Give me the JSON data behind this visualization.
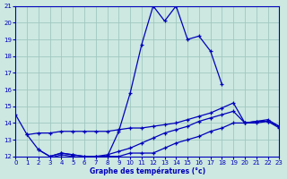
{
  "title": "Graphe des températures (°c)",
  "bg_color": "#cce8e0",
  "grid_color": "#a0c8c0",
  "line_color": "#0000bb",
  "xmin": 0,
  "xmax": 23,
  "ymin": 12,
  "ymax": 21,
  "series": [
    {
      "x": [
        0,
        1,
        2,
        3,
        4,
        5,
        6,
        7,
        8,
        9,
        10,
        11,
        12,
        13,
        14,
        15,
        16,
        17,
        18,
        19,
        20,
        21
      ],
      "y": [
        14.5,
        13.3,
        12.4,
        12.0,
        12.2,
        12.1,
        12.0,
        12.0,
        12.0,
        13.5,
        15.8,
        18.7,
        21.0,
        20.1,
        21.0,
        19.0,
        19.2,
        18.3,
        16.3,
        null,
        null,
        null
      ]
    },
    {
      "x": [
        0,
        1,
        2,
        3,
        4,
        5,
        6,
        7,
        8,
        9,
        10,
        11,
        12,
        13,
        14,
        15,
        16,
        17,
        18,
        19,
        20,
        21,
        22,
        23
      ],
      "y": [
        null,
        13.3,
        13.4,
        13.4,
        13.5,
        13.5,
        13.5,
        13.5,
        13.5,
        13.6,
        13.7,
        13.7,
        13.8,
        13.9,
        14.0,
        14.2,
        14.4,
        14.6,
        14.9,
        15.2,
        14.0,
        14.0,
        14.1,
        13.8
      ]
    },
    {
      "x": [
        2,
        3,
        4,
        5,
        6,
        7,
        8,
        9,
        10,
        11,
        12,
        13,
        14,
        15,
        16,
        17,
        18,
        19,
        20,
        21,
        22,
        23
      ],
      "y": [
        12.4,
        12.0,
        12.2,
        12.1,
        12.0,
        12.0,
        12.1,
        12.3,
        12.5,
        12.8,
        13.1,
        13.4,
        13.6,
        13.8,
        14.1,
        14.3,
        14.5,
        14.7,
        14.0,
        14.1,
        14.2,
        13.8
      ]
    },
    {
      "x": [
        3,
        4,
        5,
        6,
        7,
        8,
        9,
        10,
        11,
        12,
        13,
        14,
        15,
        16,
        17,
        18,
        19,
        20,
        21,
        22,
        23
      ],
      "y": [
        11.9,
        12.1,
        12.0,
        11.9,
        12.0,
        12.0,
        12.0,
        12.2,
        12.2,
        12.2,
        12.5,
        12.8,
        13.0,
        13.2,
        13.5,
        13.7,
        14.0,
        14.0,
        14.1,
        14.1,
        13.7
      ]
    }
  ]
}
